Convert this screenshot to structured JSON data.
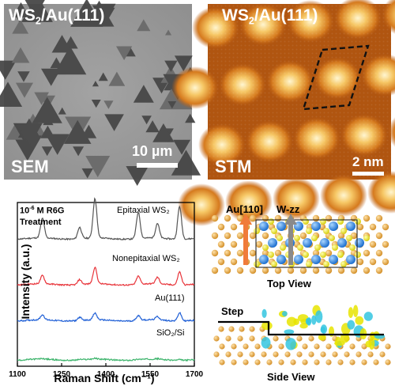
{
  "sem_panel": {
    "title_main": "WS",
    "title_sub": "2",
    "title_rest": "/Au(111)",
    "scale_label": "10 µm",
    "mode_label": "SEM"
  },
  "stm_panel": {
    "title_main": "WS",
    "title_sub": "2",
    "title_rest": "/Au(111)",
    "scale_label": "2 nm",
    "mode_label": "STM"
  },
  "raman_panel": {
    "treatment_line1_pre": "10",
    "treatment_line1_sup": "-6",
    "treatment_line1_post": " M R6G",
    "treatment_line2": "Treatment"
  },
  "chart_data": {
    "type": "line",
    "xlabel": "Raman Shift (cm⁻¹)",
    "ylabel": "Intensity (a.u.)",
    "xlim": [
      1100,
      1700
    ],
    "x_ticks": [
      "1100",
      "1250",
      "1400",
      "1550",
      "1700"
    ],
    "peaks": [
      1185,
      1311,
      1363,
      1510,
      1575,
      1650
    ],
    "series": [
      {
        "name": "Epitaxial WS₂",
        "color": "#555555",
        "offset": 0.78,
        "amplitudes": [
          0.12,
          0.07,
          0.24,
          0.16,
          0.09,
          0.2
        ]
      },
      {
        "name": "Nonepitaxial WS₂",
        "color": "#e8343a",
        "offset": 0.5,
        "amplitudes": [
          0.05,
          0.03,
          0.1,
          0.05,
          0.04,
          0.08
        ]
      },
      {
        "name": "Au(111)",
        "color": "#1f5fd6",
        "offset": 0.28,
        "amplitudes": [
          0.03,
          0.02,
          0.04,
          0.03,
          0.02,
          0.05
        ]
      },
      {
        "name": "SiO₂/Si",
        "color": "#3bb36a",
        "offset": 0.04,
        "amplitudes": [
          0.003,
          0.003,
          0.004,
          0.003,
          0.003,
          0.004
        ]
      }
    ]
  },
  "structure_panel": {
    "au_dir": "Au[110]",
    "wzz_dir": "W-zz",
    "top_view_label": "Top View",
    "step_label": "Step",
    "side_view_label": "Side View"
  }
}
